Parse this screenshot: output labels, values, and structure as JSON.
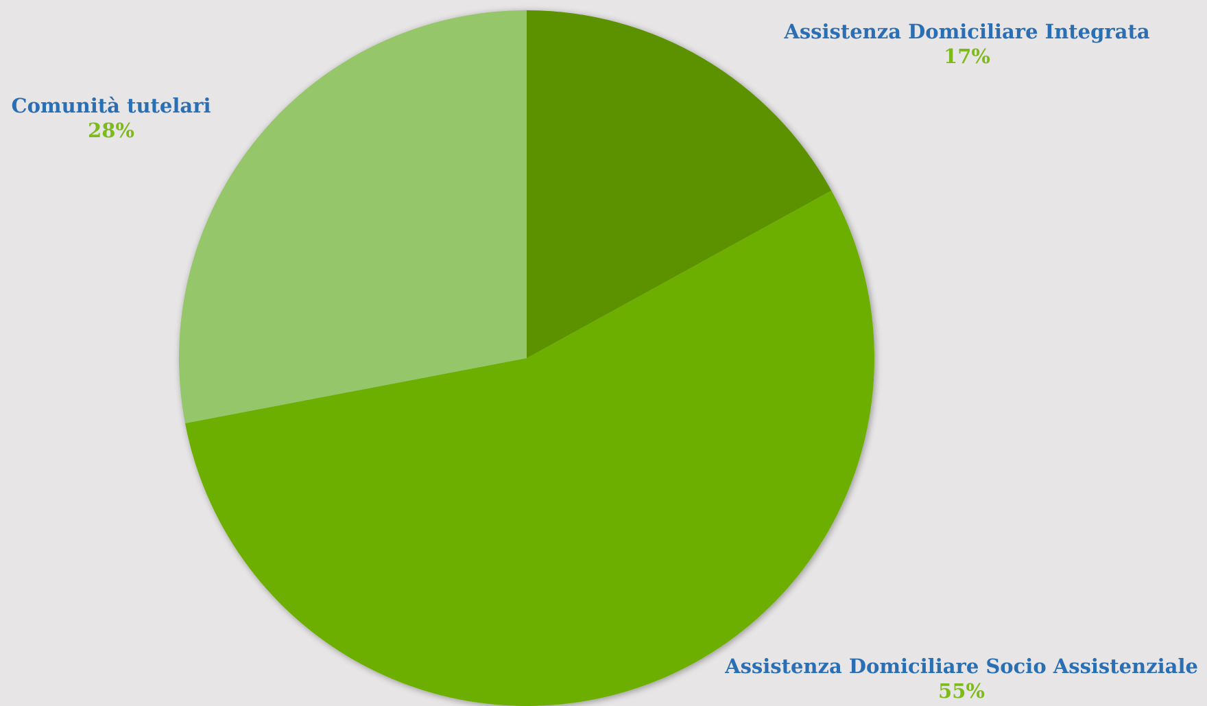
{
  "chart_data": {
    "type": "pie",
    "title": "",
    "slices": [
      {
        "label": "Assistenza Domiciliare Integrata",
        "percent_label": "17%",
        "value": 17,
        "color": "#5c9200"
      },
      {
        "label": "Assistenza Domiciliare Socio Assistenziale",
        "percent_label": "55%",
        "value": 55,
        "color": "#6daf00"
      },
      {
        "label": "Comunità tutelari",
        "percent_label": "28%",
        "value": 28,
        "color": "#95c66b"
      }
    ],
    "start_angle_deg": 0,
    "direction": "clockwise",
    "label_name_color": "#2a6fb3",
    "label_value_color": "#7fba1c",
    "background_color": "#e7e5e6"
  }
}
